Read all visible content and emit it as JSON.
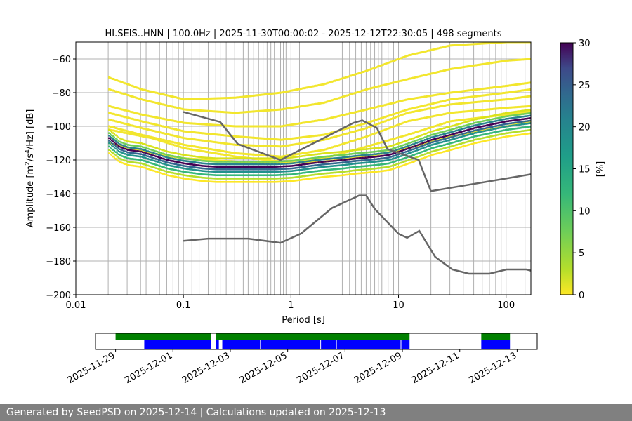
{
  "chart_data": [
    {
      "type": "heatmap",
      "title": "HI.SEIS..HNN | 100.0Hz | 2025-11-30T00:00:02 - 2025-12-12T22:30:05 | 498 segments",
      "xlabel": "Period [s]",
      "ylabel_parts": [
        "Amplitude [m",
        "2",
        "/s",
        "4",
        "/Hz] [dB]"
      ],
      "x_scale": "log",
      "xlim": [
        0.01,
        170
      ],
      "ylim": [
        -200,
        -50
      ],
      "x_ticks": [
        0.01,
        0.1,
        1,
        10,
        100
      ],
      "x_tick_labels": [
        "0.01",
        "0.1",
        "1",
        "10",
        "100"
      ],
      "y_ticks": [
        -60,
        -80,
        -100,
        -120,
        -140,
        -160,
        -180,
        -200
      ],
      "y_tick_labels": [
        "−60",
        "−80",
        "−100",
        "−120",
        "−140",
        "−160",
        "−180",
        "−200"
      ],
      "period_gridlines": [
        0.02,
        0.03,
        0.04,
        0.045,
        0.06,
        0.07,
        0.08,
        0.09,
        0.1,
        0.12,
        0.14,
        0.17,
        0.2,
        0.22,
        0.25,
        0.3,
        0.36,
        0.4,
        0.45,
        0.5,
        0.55,
        0.6,
        0.65,
        0.7,
        0.8,
        0.85,
        0.9,
        1,
        1.2,
        3,
        3.5,
        4,
        4.5,
        5,
        5.5,
        6,
        6.5,
        7,
        8,
        9,
        10,
        20,
        30,
        40,
        50,
        60,
        70,
        80,
        90,
        100,
        150
      ],
      "colorbar": {
        "label": "[%]",
        "min": 0,
        "max": 30,
        "ticks": [
          0,
          5,
          10,
          15,
          20,
          25,
          30
        ],
        "colormap": "viridis"
      },
      "mode_curve": {
        "period": [
          0.02,
          0.025,
          0.03,
          0.04,
          0.05,
          0.07,
          0.1,
          0.15,
          0.2,
          0.3,
          0.5,
          0.7,
          1,
          1.5,
          2,
          3,
          4,
          5,
          6,
          7,
          8,
          10,
          15,
          20,
          30,
          50,
          70,
          100,
          150,
          170
        ],
        "db": [
          -107,
          -112,
          -114,
          -115,
          -117,
          -120,
          -122,
          -123.5,
          -124,
          -124,
          -124,
          -124,
          -123.5,
          -122,
          -121,
          -120,
          -119,
          -118.5,
          -118,
          -117.5,
          -117,
          -115,
          -111,
          -108,
          -105,
          -101,
          -99,
          -97,
          -95.5,
          -95
        ]
      },
      "nlnm": {
        "period": [
          0.1,
          0.17,
          0.4,
          0.8,
          1.24,
          2.4,
          4.3,
          5,
          6,
          10,
          12,
          15.6,
          21.9,
          31.6,
          45,
          70,
          101,
          154,
          170
        ],
        "db": [
          -168,
          -166.7,
          -166.7,
          -169.2,
          -163.7,
          -148.6,
          -141.1,
          -141.1,
          -149,
          -163.8,
          -166.2,
          -162.1,
          -177.5,
          -185,
          -187.5,
          -187.5,
          -185,
          -185,
          -185.7
        ]
      },
      "nhnm": {
        "period": [
          0.1,
          0.22,
          0.32,
          0.8,
          3.8,
          4.6,
          6.3,
          7.9,
          15.4,
          20,
          170
        ],
        "db": [
          -91.5,
          -97.4,
          -110.5,
          -120,
          -98,
          -96.5,
          -101,
          -113.5,
          -120,
          -138.5,
          -128.5
        ]
      },
      "spectra": [
        {
          "period": [
            0.02,
            0.04,
            0.1,
            0.3,
            0.8,
            2,
            5,
            12,
            30,
            100,
            170
          ],
          "db": [
            -71,
            -78,
            -84,
            -83,
            -80,
            -75,
            -67,
            -58,
            -52,
            -50,
            -50
          ]
        },
        {
          "period": [
            0.02,
            0.04,
            0.1,
            0.3,
            0.8,
            2,
            5,
            12,
            30,
            100,
            170
          ],
          "db": [
            -78,
            -84,
            -90,
            -92,
            -90,
            -86,
            -78,
            -72,
            -66,
            -61,
            -60
          ]
        },
        {
          "period": [
            0.02,
            0.04,
            0.1,
            0.3,
            0.8,
            2,
            5,
            12,
            30,
            100,
            170
          ],
          "db": [
            -88,
            -93,
            -98,
            -100,
            -100,
            -96,
            -90,
            -84,
            -80,
            -76,
            -74
          ]
        },
        {
          "period": [
            0.02,
            0.04,
            0.1,
            0.3,
            0.8,
            2,
            5,
            12,
            30,
            100,
            170
          ],
          "db": [
            -92,
            -97,
            -103,
            -106,
            -108,
            -105,
            -98,
            -90,
            -84,
            -80,
            -78
          ]
        },
        {
          "period": [
            0.02,
            0.04,
            0.1,
            0.3,
            0.8,
            2,
            5,
            12,
            30,
            100,
            170
          ],
          "db": [
            -96,
            -101,
            -107,
            -111,
            -112,
            -108,
            -101,
            -92,
            -87,
            -84,
            -82
          ]
        },
        {
          "period": [
            0.02,
            0.04,
            0.1,
            0.3,
            0.8,
            2,
            5,
            12,
            30,
            100,
            170
          ],
          "db": [
            -100,
            -105,
            -111,
            -116,
            -118,
            -114,
            -106,
            -97,
            -92,
            -89,
            -88
          ]
        },
        {
          "period": [
            0.02,
            0.05,
            0.1,
            0.3,
            0.8,
            2,
            5,
            12,
            30,
            100,
            170
          ],
          "db": [
            -102,
            -107,
            -113,
            -118,
            -121,
            -119,
            -112,
            -105,
            -97,
            -93,
            -91
          ]
        },
        {
          "period": [
            0.02,
            0.05,
            0.1,
            0.3,
            0.8,
            2,
            5,
            12,
            30,
            100,
            170
          ],
          "db": [
            -110,
            -116,
            -119,
            -121,
            -122,
            -121,
            -118,
            -113,
            -106,
            -100,
            -97
          ]
        }
      ]
    },
    {
      "type": "timeline",
      "date_ticks": [
        "2025-11-29",
        "2025-12-01",
        "2025-12-03",
        "2025-12-05",
        "2025-12-07",
        "2025-12-09",
        "2025-12-11",
        "2025-12-13"
      ],
      "x_range_days": [
        -0.7,
        14.7
      ],
      "green_segments": [
        [
          0.0,
          3.33
        ],
        [
          3.5,
          10.25
        ],
        [
          12.75,
          13.75
        ]
      ],
      "blue_segments": [
        [
          1.0,
          3.33
        ],
        [
          3.5,
          3.6
        ],
        [
          3.72,
          10.25
        ],
        [
          12.75,
          13.75
        ]
      ],
      "blue_gaps": [
        5.05,
        7.15,
        7.7,
        9.95
      ]
    }
  ],
  "footer": {
    "text": "Generated by SeedPSD on 2025-12-14 | Calculations updated on 2025-12-13"
  },
  "colors": {
    "green": "#008000",
    "blue": "#0000ff",
    "model_lines": "#666666",
    "grid": "#b0b0b0",
    "footer_bg": "#808080"
  }
}
